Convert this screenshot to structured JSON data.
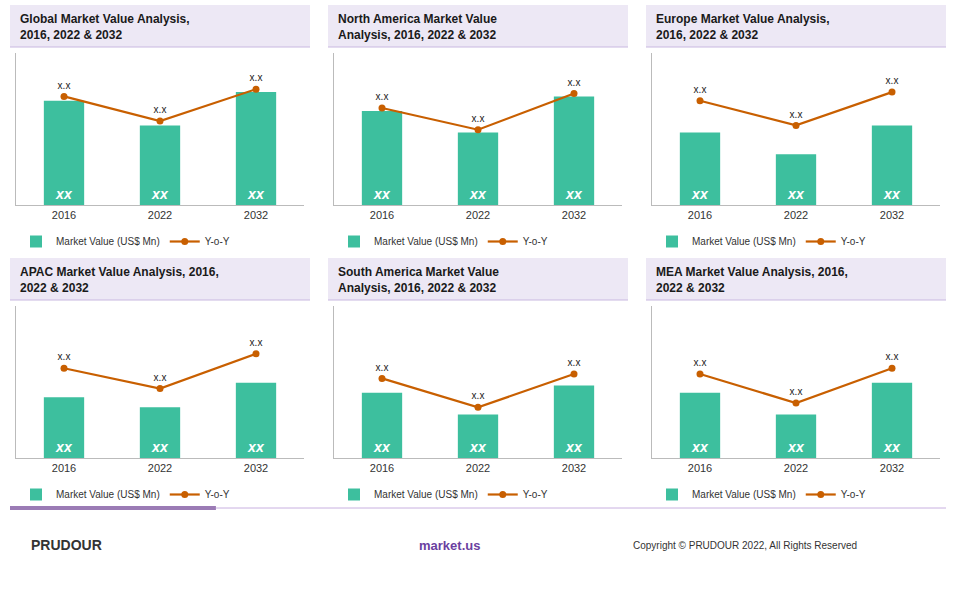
{
  "chart_data": [
    {
      "type": "bar",
      "title": "Global Market Value Analysis,\n2016, 2022 & 2032",
      "categories": [
        "2016",
        "2022",
        "2032"
      ],
      "series": [
        {
          "name": "Market Value (US$ Mn)",
          "type": "bar",
          "color": "#3dbf9e",
          "values": [
            0.72,
            0.55,
            0.78
          ],
          "value_labels": [
            "xx",
            "xx",
            "xx"
          ]
        },
        {
          "name": "Y-o-Y",
          "type": "line",
          "color": "#c85f00",
          "marker": "circle",
          "values": [
            0.75,
            0.58,
            0.8
          ],
          "value_labels": [
            "x.x",
            "x.x",
            "x.x"
          ]
        }
      ],
      "ylim": [
        0,
        1.05
      ],
      "grid": false,
      "legend": "bottom",
      "tick_labels": "x",
      "data_labels": true
    },
    {
      "type": "bar",
      "title": "North America Market Value\nAnalysis, 2016, 2022 & 2032",
      "categories": [
        "2016",
        "2022",
        "2032"
      ],
      "series": [
        {
          "name": "Market Value (US$ Mn)",
          "type": "bar",
          "color": "#3dbf9e",
          "values": [
            0.65,
            0.5,
            0.75
          ],
          "value_labels": [
            "xx",
            "xx",
            "xx"
          ]
        },
        {
          "name": "Y-o-Y",
          "type": "line",
          "color": "#c85f00",
          "marker": "circle",
          "values": [
            0.67,
            0.52,
            0.77
          ],
          "value_labels": [
            "x.x",
            "x.x",
            "x.x"
          ]
        }
      ],
      "ylim": [
        0,
        1.05
      ],
      "grid": false,
      "legend": "bottom",
      "tick_labels": "x",
      "data_labels": true
    },
    {
      "type": "bar",
      "title": "Europe Market Value Analysis,\n2016, 2022 & 2032",
      "categories": [
        "2016",
        "2022",
        "2032"
      ],
      "series": [
        {
          "name": "Market Value (US$ Mn)",
          "type": "bar",
          "color": "#3dbf9e",
          "values": [
            0.5,
            0.35,
            0.55
          ],
          "value_labels": [
            "xx",
            "xx",
            "xx"
          ]
        },
        {
          "name": "Y-o-Y",
          "type": "line",
          "color": "#c85f00",
          "marker": "circle",
          "values": [
            0.72,
            0.55,
            0.78
          ],
          "value_labels": [
            "x.x",
            "x.x",
            "x.x"
          ]
        }
      ],
      "ylim": [
        0,
        1.05
      ],
      "grid": false,
      "legend": "bottom",
      "tick_labels": "x",
      "data_labels": true
    },
    {
      "type": "bar",
      "title": "APAC Market Value Analysis, 2016,\n2022 & 2032",
      "categories": [
        "2016",
        "2022",
        "2032"
      ],
      "series": [
        {
          "name": "Market Value (US$ Mn)",
          "type": "bar",
          "color": "#3dbf9e",
          "values": [
            0.42,
            0.35,
            0.52
          ],
          "value_labels": [
            "xx",
            "xx",
            "xx"
          ]
        },
        {
          "name": "Y-o-Y",
          "type": "line",
          "color": "#c85f00",
          "marker": "circle",
          "values": [
            0.62,
            0.48,
            0.72
          ],
          "value_labels": [
            "x.x",
            "x.x",
            "x.x"
          ]
        }
      ],
      "ylim": [
        0,
        1.05
      ],
      "grid": false,
      "legend": "bottom",
      "tick_labels": "x",
      "data_labels": true
    },
    {
      "type": "bar",
      "title": "South America Market Value\nAnalysis, 2016, 2022 & 2032",
      "categories": [
        "2016",
        "2022",
        "2032"
      ],
      "series": [
        {
          "name": "Market Value (US$ Mn)",
          "type": "bar",
          "color": "#3dbf9e",
          "values": [
            0.45,
            0.3,
            0.5
          ],
          "value_labels": [
            "xx",
            "xx",
            "xx"
          ]
        },
        {
          "name": "Y-o-Y",
          "type": "line",
          "color": "#c85f00",
          "marker": "circle",
          "values": [
            0.55,
            0.35,
            0.58
          ],
          "value_labels": [
            "x.x",
            "x.x",
            "x.x"
          ]
        }
      ],
      "ylim": [
        0,
        1.05
      ],
      "grid": false,
      "legend": "bottom",
      "tick_labels": "x",
      "data_labels": true
    },
    {
      "type": "bar",
      "title": "MEA Market Value Analysis, 2016,\n2022 & 2032",
      "categories": [
        "2016",
        "2022",
        "2032"
      ],
      "series": [
        {
          "name": "Market Value (US$ Mn)",
          "type": "bar",
          "color": "#3dbf9e",
          "values": [
            0.45,
            0.3,
            0.52
          ],
          "value_labels": [
            "xx",
            "xx",
            "xx"
          ]
        },
        {
          "name": "Y-o-Y",
          "type": "line",
          "color": "#c85f00",
          "marker": "circle",
          "values": [
            0.58,
            0.38,
            0.62
          ],
          "value_labels": [
            "x.x",
            "x.x",
            "x.x"
          ]
        }
      ],
      "ylim": [
        0,
        1.05
      ],
      "grid": false,
      "legend": "bottom",
      "tick_labels": "x",
      "data_labels": true
    }
  ],
  "annotations": [
    "PRUDOUR",
    "market.us",
    "Copyright © PRUDOUR 2022, All Rights Reserved"
  ]
}
